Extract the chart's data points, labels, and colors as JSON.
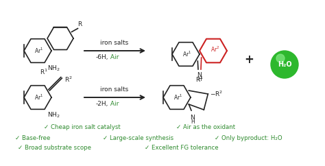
{
  "bg_color": "#ffffff",
  "green": "#2d8a2d",
  "red": "#cc2222",
  "black": "#222222",
  "arrow_color": "#222222",
  "bullet_lines": [
    [
      "✓ Cheap iron salt catalyst",
      "✓ Air as the oxidant"
    ],
    [
      "✓ Base-free",
      "✓ Large-scale synthesis",
      "✓ Only byproduct: H₂O"
    ],
    [
      "✓ Broad substrate scope",
      "✓ Excellent FG tolerance"
    ]
  ],
  "reaction1_label_top": "iron salts",
  "reaction1_label_bot_black": "-6H,",
  "reaction1_label_bot_green": " Air",
  "reaction2_label_top": "iron salts",
  "reaction2_label_bot_black": "-2H,",
  "reaction2_label_bot_green": " Air",
  "plus_sign": "+",
  "water_label": "H₂O",
  "fig_width": 4.74,
  "fig_height": 2.42,
  "dpi": 100
}
